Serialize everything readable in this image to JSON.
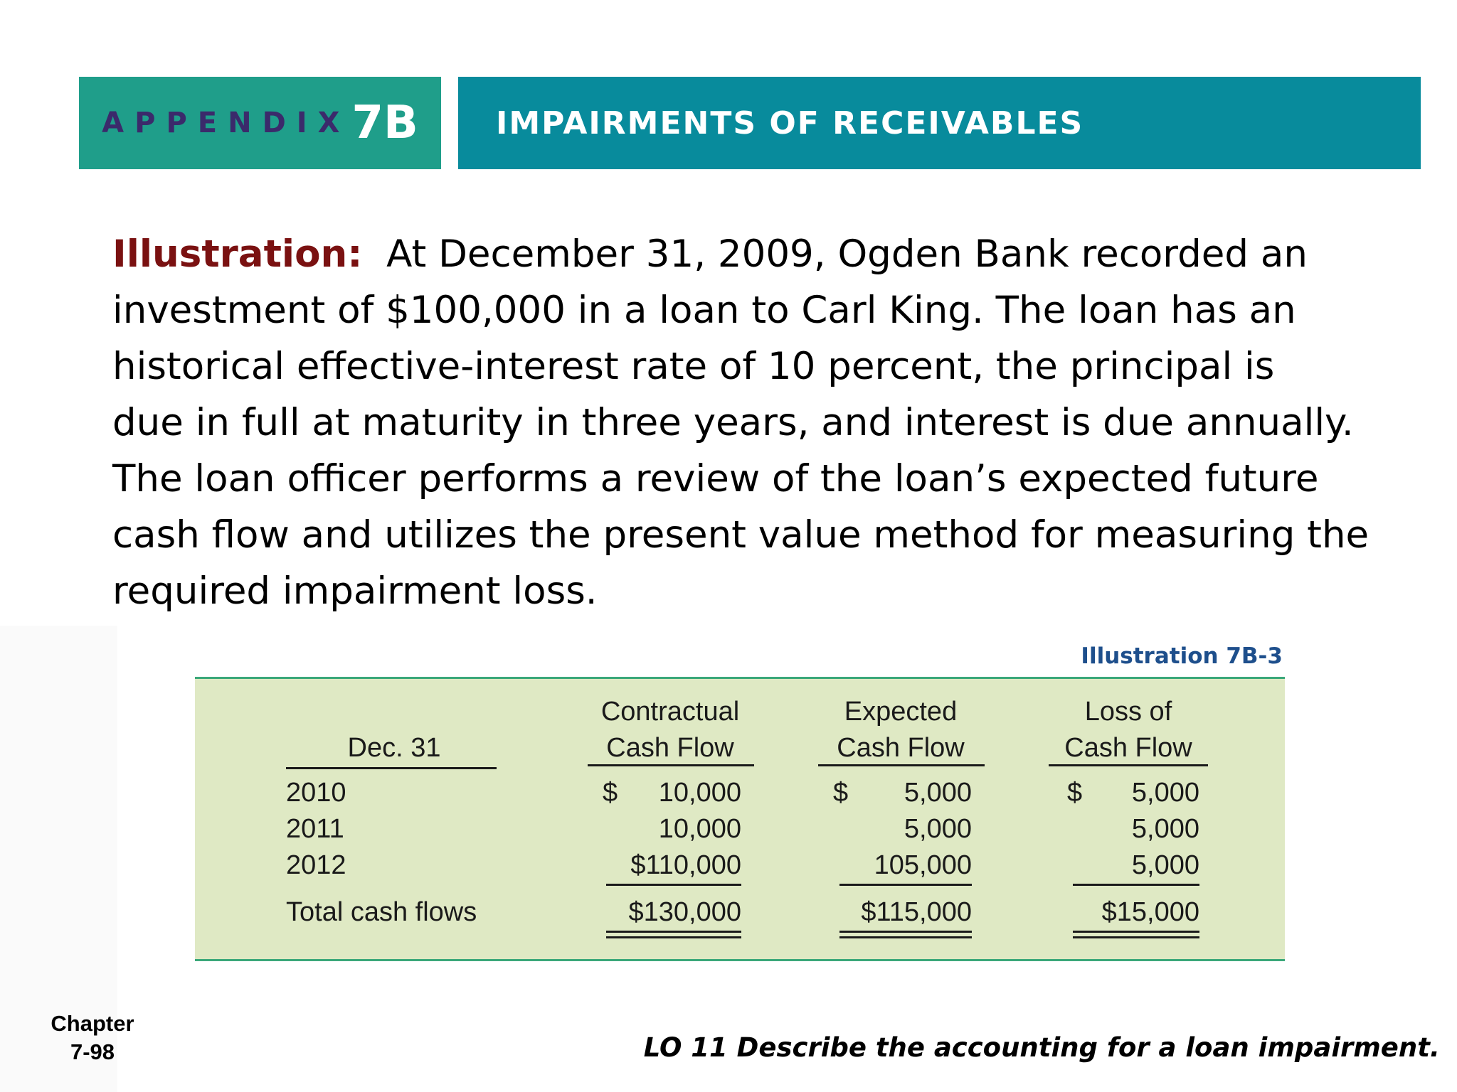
{
  "header": {
    "appendix_word": "APPENDIX",
    "appendix_number": "7B",
    "title": "IMPAIRMENTS OF RECEIVABLES"
  },
  "paragraph": {
    "lead": "Illustration:",
    "lines": [
      "At December 31, 2009, Ogden Bank recorded an",
      "investment of $100,000 in a loan to Carl King. The loan has an",
      "historical effective-interest rate of 10 percent, the principal is",
      "due in full at maturity in three years, and interest is due annually.",
      "The loan officer performs a review of the loan’s expected future",
      "cash flow and utilizes the present value method for measuring the",
      "required impairment loss."
    ]
  },
  "exhibit": {
    "caption": "Illustration 7B-3",
    "headers": {
      "date": "Dec. 31",
      "contractual": [
        "Contractual",
        "Cash Flow"
      ],
      "expected": [
        "Expected",
        "Cash Flow"
      ],
      "loss": [
        "Loss of",
        "Cash Flow"
      ]
    },
    "rows": [
      {
        "label": "2010",
        "contractual_sign": "$",
        "contractual": "10,000",
        "expected_sign": "$",
        "expected": "5,000",
        "loss_sign": "$",
        "loss": "5,000"
      },
      {
        "label": "2011",
        "contractual": "10,000",
        "expected": "5,000",
        "loss": "5,000"
      },
      {
        "label": "2012",
        "contractual": "$110,000",
        "expected": "105,000",
        "loss": "5,000"
      }
    ],
    "total": {
      "label": "Total cash flows",
      "contractual": "$130,000",
      "expected": "$115,000",
      "loss": "$15,000"
    }
  },
  "footer": {
    "chapter_label": "Chapter",
    "page": "7-98",
    "learning_objective": "LO 11  Describe the accounting for a loan impairment."
  }
}
